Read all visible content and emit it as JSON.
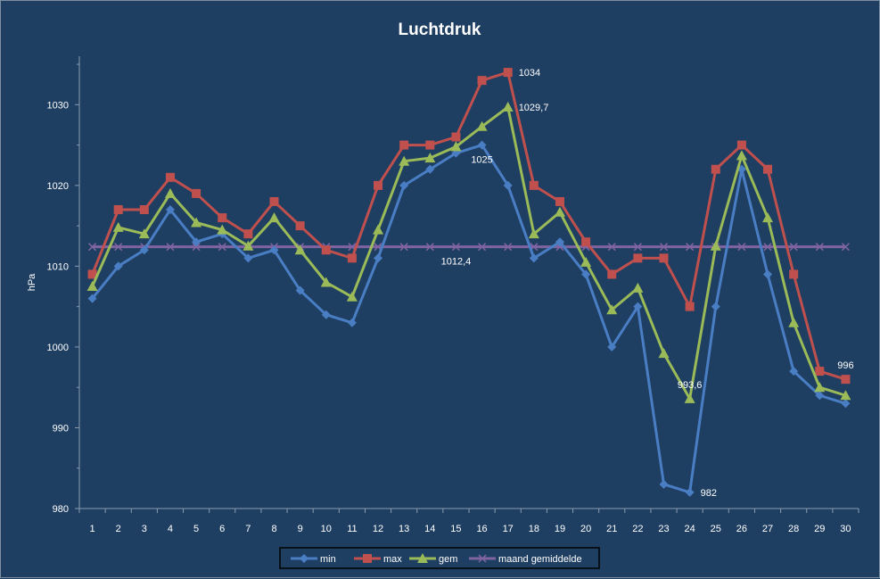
{
  "chart_data": {
    "type": "line",
    "title": "Luchtdruk",
    "ylabel": "hPa",
    "xlabel": "",
    "ylim": [
      980,
      1036
    ],
    "yticks": [
      980,
      990,
      1000,
      1010,
      1020,
      1030
    ],
    "grid": false,
    "legend_position": "bottom",
    "categories": [
      "1",
      "2",
      "3",
      "4",
      "5",
      "6",
      "7",
      "8",
      "9",
      "10",
      "11",
      "12",
      "13",
      "14",
      "15",
      "16",
      "17",
      "18",
      "19",
      "20",
      "21",
      "22",
      "23",
      "24",
      "25",
      "26",
      "27",
      "28",
      "29",
      "30"
    ],
    "series": [
      {
        "name": "min",
        "color": "#4a7ec4",
        "marker": "diamond",
        "values": [
          1006,
          1010,
          1012,
          1017,
          1013,
          1014,
          1011,
          1012,
          1007,
          1004,
          1003,
          1011,
          1020,
          1022,
          1024,
          1025,
          1020,
          1011,
          1013,
          1009,
          1000,
          1005,
          983,
          982,
          1005,
          1022,
          1009,
          997,
          994,
          993
        ]
      },
      {
        "name": "max",
        "color": "#c0504d",
        "marker": "square",
        "values": [
          1009,
          1017,
          1017,
          1021,
          1019,
          1016,
          1014,
          1018,
          1015,
          1012,
          1011,
          1020,
          1025,
          1025,
          1026,
          1033,
          1034,
          1020,
          1018,
          1013,
          1009,
          1011,
          1011,
          1005,
          1022,
          1025,
          1022,
          1009,
          997,
          996
        ]
      },
      {
        "name": "gem",
        "color": "#9bbb59",
        "marker": "triangle",
        "values": [
          1007.5,
          1014.8,
          1014,
          1019,
          1015.4,
          1014.5,
          1012.5,
          1016,
          1012,
          1008,
          1006.2,
          1014.5,
          1023,
          1023.4,
          1024.8,
          1027.3,
          1029.7,
          1014,
          1016.7,
          1010.5,
          1004.6,
          1007.3,
          999.2,
          993.6,
          1012.5,
          1023.7,
          1016,
          1003,
          995,
          994
        ]
      },
      {
        "name": "maand gemiddelde",
        "color": "#8064a2",
        "marker": "x",
        "values": [
          1012.4,
          1012.4,
          1012.4,
          1012.4,
          1012.4,
          1012.4,
          1012.4,
          1012.4,
          1012.4,
          1012.4,
          1012.4,
          1012.4,
          1012.4,
          1012.4,
          1012.4,
          1012.4,
          1012.4,
          1012.4,
          1012.4,
          1012.4,
          1012.4,
          1012.4,
          1012.4,
          1012.4,
          1012.4,
          1012.4,
          1012.4,
          1012.4,
          1012.4,
          1012.4
        ]
      }
    ],
    "annotations": [
      {
        "text": "1034",
        "series": 1,
        "index": 16,
        "position": "right"
      },
      {
        "text": "1029,7",
        "series": 2,
        "index": 16,
        "position": "right"
      },
      {
        "text": "1025",
        "series": 0,
        "index": 15,
        "position": "below"
      },
      {
        "text": "1012,4",
        "series": 3,
        "index": 14,
        "position": "below"
      },
      {
        "text": "993,6",
        "series": 2,
        "index": 23,
        "position": "above"
      },
      {
        "text": "982",
        "series": 0,
        "index": 23,
        "position": "right"
      },
      {
        "text": "996",
        "series": 1,
        "index": 29,
        "position": "above"
      }
    ],
    "colors": {
      "background": "#1f3f62",
      "axis": "#8a9bb0",
      "text": "#ffffff"
    }
  }
}
